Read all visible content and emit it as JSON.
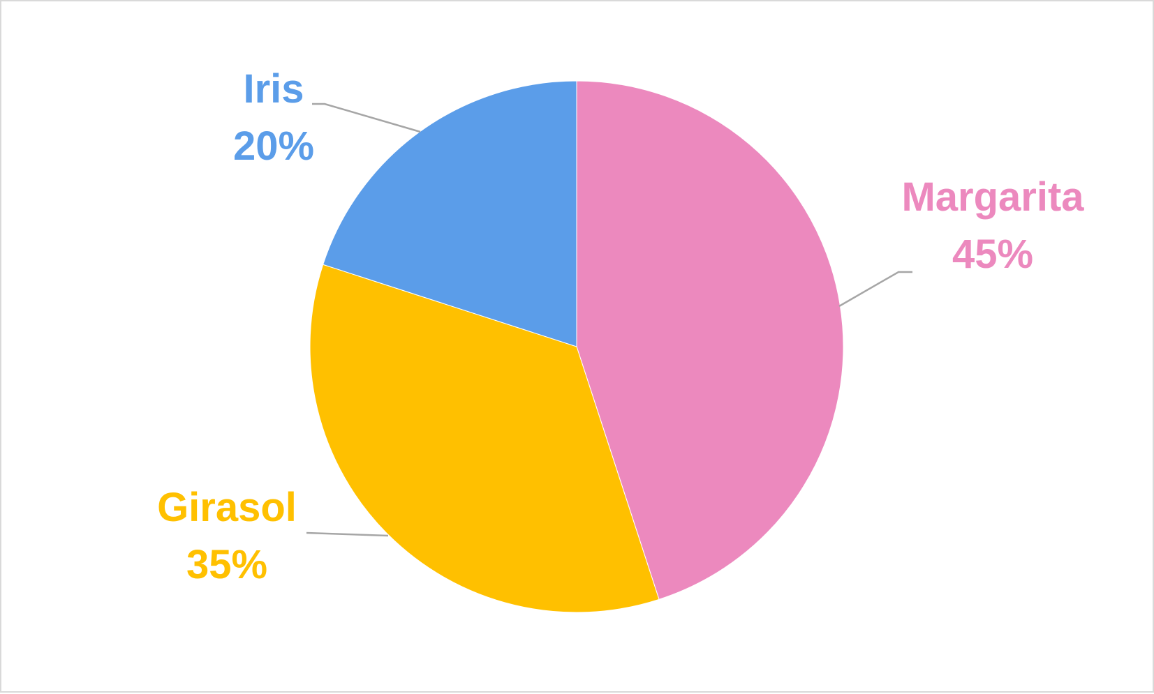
{
  "chart_data": {
    "type": "pie",
    "title": "",
    "slices": [
      {
        "label": "Margarita",
        "value": 45,
        "value_label": "45%",
        "color": "#ec89be"
      },
      {
        "label": "Girasol",
        "value": 35,
        "value_label": "35%",
        "color": "#ffc000"
      },
      {
        "label": "Iris",
        "value": 20,
        "value_label": "20%",
        "color": "#5b9de9"
      }
    ],
    "start_angle": "12 o'clock",
    "direction": "clockwise",
    "legend": "none",
    "data_labels": "outside with leader lines"
  }
}
